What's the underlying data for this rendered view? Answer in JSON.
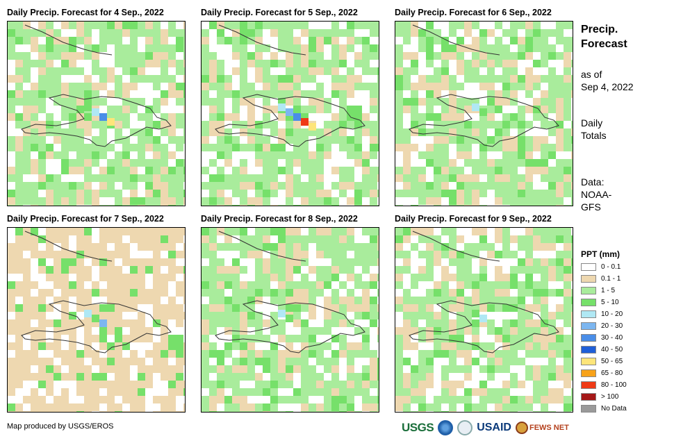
{
  "panels": [
    {
      "title": "Daily Precip. Forecast for 4 Sep., 2022",
      "dominant_class": "1 - 5"
    },
    {
      "title": "Daily Precip. Forecast for 5 Sep., 2022",
      "dominant_class": "1 - 5"
    },
    {
      "title": "Daily Precip. Forecast for 6 Sep., 2022",
      "dominant_class": "1 - 5"
    },
    {
      "title": "Daily Precip. Forecast for 7 Sep., 2022",
      "dominant_class": "0.1 - 1"
    },
    {
      "title": "Daily Precip. Forecast for 8 Sep., 2022",
      "dominant_class": "1 - 5"
    },
    {
      "title": "Daily Precip. Forecast for 9 Sep., 2022",
      "dominant_class": "1 - 5"
    }
  ],
  "side": {
    "title_line1": "Precip.",
    "title_line2": "Forecast",
    "asof_line1": "as of",
    "asof_line2": "Sep 4, 2022",
    "daily_line1": "Daily",
    "daily_line2": "Totals",
    "data_line1": "Data:",
    "data_line2": "NOAA-",
    "data_line3": "GFS"
  },
  "legend": {
    "title": "PPT (mm)",
    "items": [
      {
        "label": "0 - 0.1",
        "color": "#ffffff"
      },
      {
        "label": "0.1 - 1",
        "color": "#eed8b0"
      },
      {
        "label": "1 - 5",
        "color": "#a9ec9c"
      },
      {
        "label": "5 - 10",
        "color": "#76e06a"
      },
      {
        "label": "10 - 20",
        "color": "#b0e8f4"
      },
      {
        "label": "20 - 30",
        "color": "#7cb6f0"
      },
      {
        "label": "30 - 40",
        "color": "#4a8ee8"
      },
      {
        "label": "40 - 50",
        "color": "#1f5fd8"
      },
      {
        "label": "50 - 65",
        "color": "#fde57a"
      },
      {
        "label": "65 - 80",
        "color": "#f7a21a"
      },
      {
        "label": "80 - 100",
        "color": "#ef3a16"
      },
      {
        "label": "> 100",
        "color": "#a51818"
      },
      {
        "label": "No Data",
        "color": "#9a9a9a"
      }
    ]
  },
  "credit": "Map produced by USGS/EROS",
  "logos": {
    "usgs": "USGS",
    "usaid": "USAID",
    "fews": "FEWS NET"
  }
}
